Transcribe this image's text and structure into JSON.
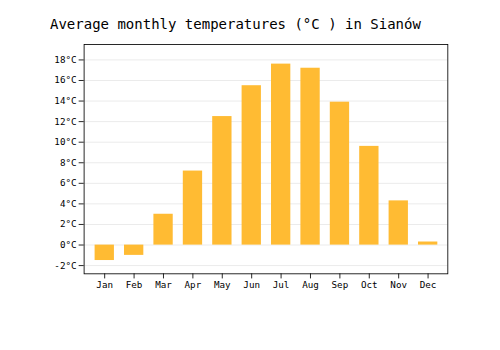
{
  "chart_data": {
    "type": "bar",
    "title": "Average monthly temperatures (°C ) in Sianów",
    "categories": [
      "Jan",
      "Feb",
      "Mar",
      "Apr",
      "May",
      "Jun",
      "Jul",
      "Aug",
      "Sep",
      "Oct",
      "Nov",
      "Dec"
    ],
    "values": [
      -1.5,
      -1.0,
      3.0,
      7.2,
      12.5,
      15.5,
      17.6,
      17.2,
      13.9,
      9.6,
      4.3,
      0.3
    ],
    "color": "#FFBB33",
    "ylim": [
      -2.8,
      19.5
    ],
    "yticks": [
      {
        "value": -2,
        "label": "-2°C"
      },
      {
        "value": 0,
        "label": "0°C"
      },
      {
        "value": 2,
        "label": "2°C"
      },
      {
        "value": 4,
        "label": "4°C"
      },
      {
        "value": 6,
        "label": "6°C"
      },
      {
        "value": 8,
        "label": "8°C"
      },
      {
        "value": 10,
        "label": "10°C"
      },
      {
        "value": 12,
        "label": "12°C"
      },
      {
        "value": 14,
        "label": "14°C"
      },
      {
        "value": 16,
        "label": "16°C"
      },
      {
        "value": 18,
        "label": "18°C"
      }
    ],
    "grid": true
  }
}
